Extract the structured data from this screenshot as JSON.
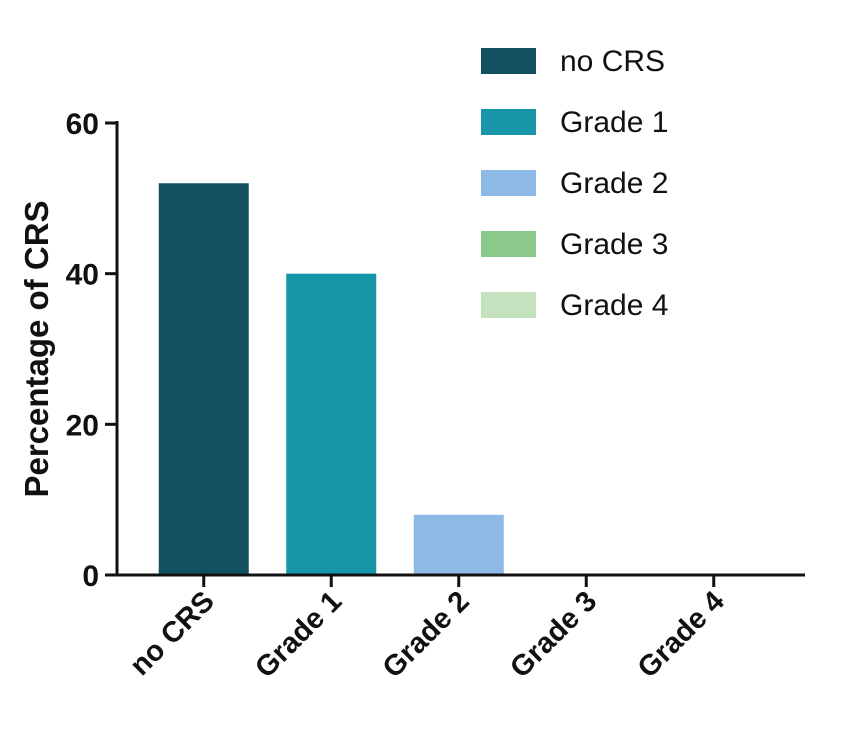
{
  "chart_data": {
    "type": "bar",
    "categories": [
      "no CRS",
      "Grade 1",
      "Grade 2",
      "Grade 3",
      "Grade 4"
    ],
    "values": [
      52,
      40,
      8,
      0,
      0
    ],
    "colors": [
      "#124f5f",
      "#1796aa",
      "#8db9e6",
      "#8bc98a",
      "#c4e2bd"
    ],
    "title": "",
    "xlabel": "",
    "ylabel": "Percentage of CRS",
    "ylim": [
      0,
      60
    ],
    "yticks": [
      0,
      20,
      40,
      60
    ],
    "grid": false,
    "legend": {
      "placement": "top-right",
      "entries": [
        "no CRS",
        "Grade 1",
        "Grade 2",
        "Grade 3",
        "Grade 4"
      ]
    }
  }
}
